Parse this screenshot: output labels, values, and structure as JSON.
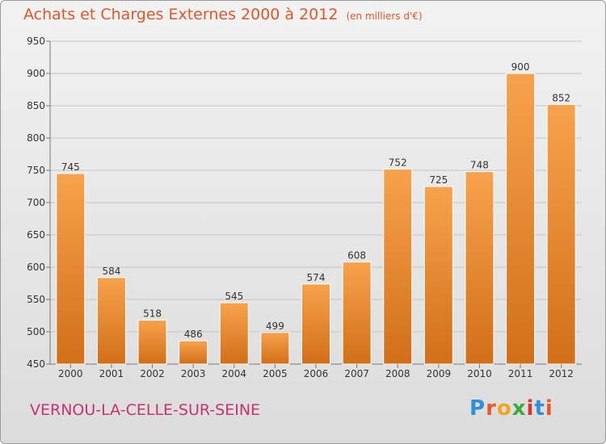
{
  "header": {
    "title": "Achats et Charges Externes 2000 à 2012",
    "unit": "(en milliers d'€)"
  },
  "footer": {
    "city": "VERNOU-LA-CELLE-SUR-SEINE",
    "logo": "Proxiti"
  },
  "colors": {
    "bar_top": "#f7a24e",
    "bar_bottom": "#d26f18",
    "title": "#e0572a",
    "city": "#c7336f"
  },
  "chart_data": {
    "type": "bar",
    "title": "Achats et Charges Externes 2000 à 2012",
    "subtitle": "(en milliers d'€)",
    "xlabel": "",
    "ylabel": "",
    "categories": [
      "2000",
      "2001",
      "2002",
      "2003",
      "2004",
      "2005",
      "2006",
      "2007",
      "2008",
      "2009",
      "2010",
      "2011",
      "2012"
    ],
    "values": [
      745,
      584,
      518,
      486,
      545,
      499,
      574,
      608,
      752,
      725,
      748,
      900,
      852
    ],
    "ylim": [
      450,
      950
    ],
    "yticks": [
      450,
      500,
      550,
      600,
      650,
      700,
      750,
      800,
      850,
      900,
      950
    ],
    "grid": true,
    "legend": "none"
  }
}
